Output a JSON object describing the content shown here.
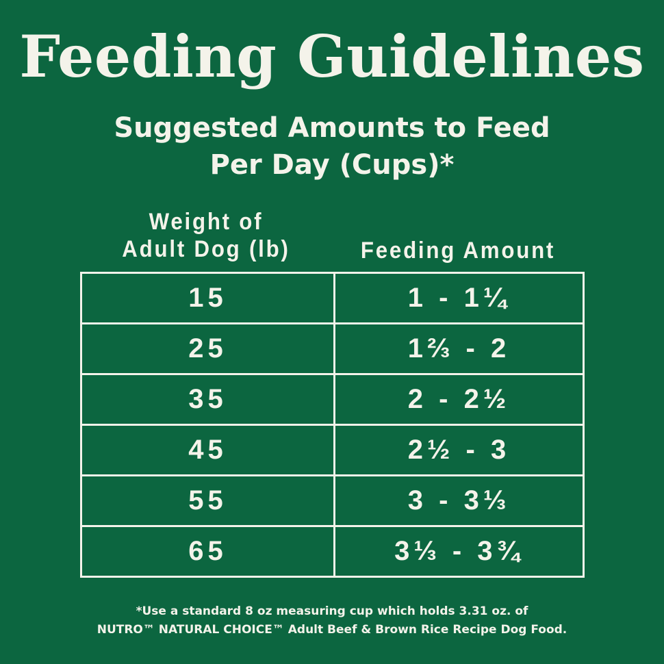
{
  "title": "Feeding Guidelines",
  "subtitle": {
    "line1": "Suggested Amounts to Feed",
    "line2": "Per Day (Cups)*"
  },
  "headers": {
    "weight_line1": "Weight of",
    "weight_line2": "Adult Dog (lb)",
    "amount": "Feeding Amount"
  },
  "rows": [
    {
      "weight": "15",
      "amount": "1 - 1¼"
    },
    {
      "weight": "25",
      "amount": "1⅔ - 2"
    },
    {
      "weight": "35",
      "amount": "2 - 2½"
    },
    {
      "weight": "45",
      "amount": "2½ - 3"
    },
    {
      "weight": "55",
      "amount": "3 - 3⅓"
    },
    {
      "weight": "65",
      "amount": "3⅓ - 3¾"
    }
  ],
  "footnote": {
    "line1": "*Use a standard 8 oz measuring cup which holds 3.31 oz. of",
    "line2": "NUTRO™ NATURAL CHOICE™ Adult Beef & Brown Rice Recipe Dog Food."
  },
  "colors": {
    "background": "#0c6640",
    "text": "#f4f3ea"
  }
}
